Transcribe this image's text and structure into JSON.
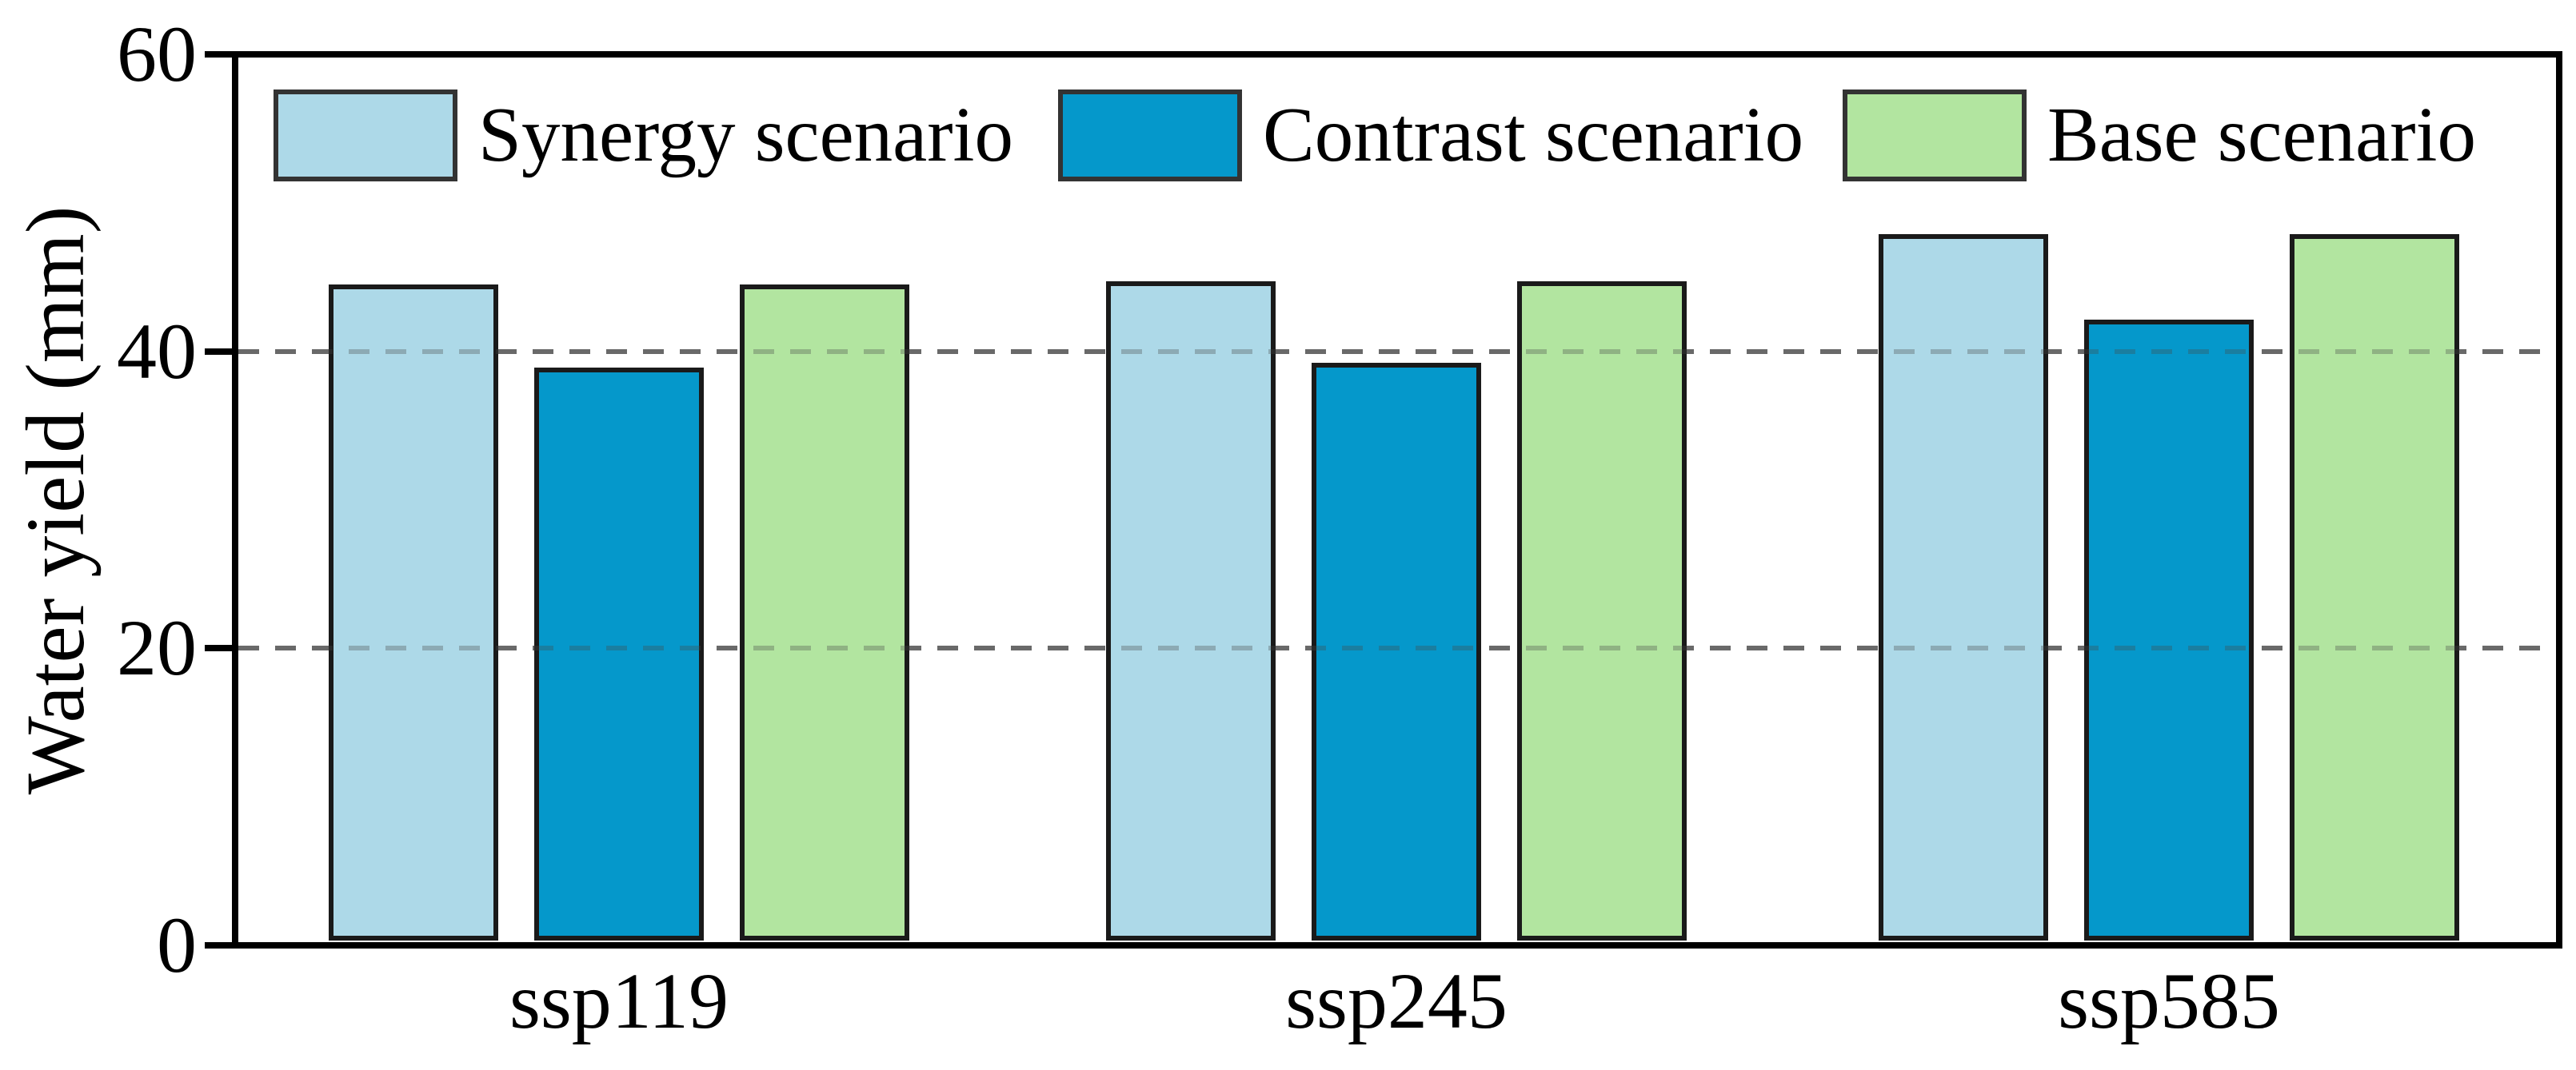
{
  "chart_data": {
    "type": "bar",
    "title": "",
    "xlabel": "",
    "ylabel": "Water yield (mm)",
    "categories": [
      "ssp119",
      "ssp245",
      "ssp585"
    ],
    "series": [
      {
        "name": "Synergy scenario",
        "color": "#ADD9E8",
        "values": [
          44.3,
          44.5,
          47.7
        ]
      },
      {
        "name": "Contrast scenario",
        "color": "#0598CB",
        "values": [
          38.7,
          39.0,
          41.9
        ]
      },
      {
        "name": "Base scenario",
        "color": "#B2E5A0",
        "values": [
          44.3,
          44.5,
          47.7
        ]
      }
    ],
    "ylim": [
      0,
      60
    ],
    "yticks": [
      0,
      20,
      40,
      60
    ],
    "gridlines": [
      20,
      40
    ],
    "grid_style": "dashed",
    "grid_color": "#7A7A7A",
    "legend_position": "top-inside",
    "bar_border_color": "#1A1A1A",
    "axis_color": "#000000",
    "plot_frame": "full-box"
  }
}
